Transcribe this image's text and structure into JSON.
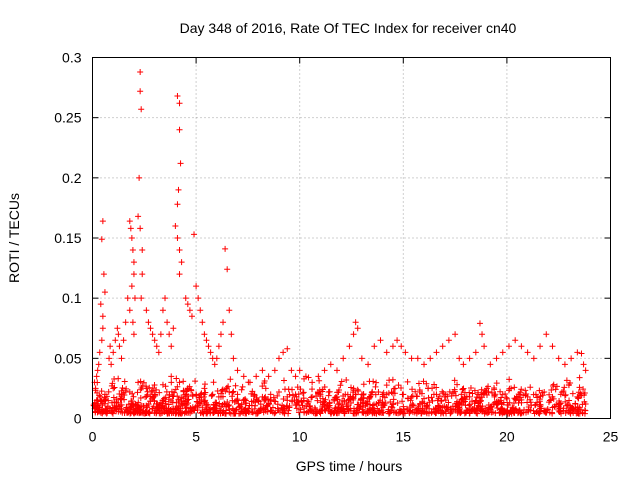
{
  "chart_data": {
    "type": "scatter",
    "title": "Day 348 of 2016, Rate Of TEC Index for receiver cn40",
    "xlabel": "GPS time / hours",
    "ylabel": "ROTI / TECUs",
    "xlim": [
      0,
      25
    ],
    "ylim": [
      0,
      0.3
    ],
    "x_ticks": [
      "0",
      "5",
      "10",
      "15",
      "20",
      "25"
    ],
    "y_ticks": [
      "0",
      "0.05",
      "0.1",
      "0.15",
      "0.2",
      "0.25",
      "0.3"
    ],
    "grid": true,
    "marker": "plus",
    "color": "#ff0000",
    "series": [
      {
        "name": "ROTI",
        "x": [
          0.5,
          0.45,
          0.55,
          0.6,
          0.4,
          0.5,
          0.5,
          0.45,
          0.35,
          0.3,
          0.2,
          0.1,
          0.15,
          0.25,
          0.8,
          0.85,
          0.9,
          1.0,
          1.1,
          1.2,
          1.25,
          1.3,
          1.4,
          1.5,
          1.6,
          1.7,
          1.8,
          1.85,
          1.9,
          1.95,
          2.0,
          2.0,
          1.9,
          2.05,
          1.8,
          1.95,
          2.0,
          2.3,
          2.3,
          2.35,
          2.25,
          2.2,
          2.3,
          2.4,
          2.4,
          2.35,
          2.6,
          2.7,
          2.8,
          2.9,
          3.0,
          3.1,
          3.2,
          3.3,
          3.4,
          3.5,
          3.6,
          3.7,
          3.8,
          3.9,
          4.1,
          4.2,
          4.2,
          4.25,
          4.15,
          4.1,
          4.0,
          4.1,
          4.2,
          4.3,
          4.2,
          4.5,
          4.6,
          4.7,
          4.8,
          4.9,
          5.0,
          5.1,
          5.2,
          5.3,
          5.4,
          5.5,
          5.6,
          5.7,
          5.8,
          5.9,
          6.0,
          6.1,
          6.2,
          6.3,
          6.4,
          6.5,
          6.6,
          6.7,
          6.8,
          7.0,
          7.3,
          7.6,
          7.9,
          8.2,
          8.5,
          8.8,
          9.0,
          9.2,
          9.4,
          9.6,
          9.8,
          10.0,
          10.3,
          10.6,
          10.9,
          11.2,
          11.5,
          11.8,
          12.1,
          12.4,
          12.6,
          12.7,
          12.8,
          13.0,
          13.3,
          13.6,
          13.9,
          14.2,
          14.5,
          14.7,
          14.9,
          15.1,
          15.4,
          15.7,
          16.0,
          16.3,
          16.6,
          16.9,
          17.2,
          17.5,
          17.7,
          17.9,
          18.2,
          18.5,
          18.7,
          18.8,
          18.9,
          19.2,
          19.5,
          19.8,
          20.1,
          20.4,
          20.7,
          21.0,
          21.3,
          21.6,
          21.9,
          22.2,
          22.5,
          22.8,
          23.1,
          23.4,
          23.6,
          23.7,
          23.8,
          0.2,
          0.6,
          1.0,
          1.4,
          1.8,
          2.2,
          2.6,
          3.0,
          3.4,
          3.8,
          4.2,
          4.6,
          5.0,
          5.4,
          5.8,
          6.2,
          6.6,
          7.0,
          7.4,
          7.8,
          8.2,
          8.6,
          9.0,
          9.4,
          9.8,
          10.2,
          10.6,
          11.0,
          11.4,
          11.8,
          12.2,
          12.6,
          13.0,
          13.4,
          13.8,
          14.2,
          14.6,
          15.0,
          15.4,
          15.8,
          16.2,
          16.6,
          17.0,
          17.4,
          17.8,
          18.2,
          18.6,
          19.0,
          19.4,
          19.8,
          20.2,
          20.6,
          21.0,
          21.4,
          21.8,
          22.2,
          22.6,
          23.0,
          23.4,
          23.8
        ],
        "y": [
          0.164,
          0.149,
          0.12,
          0.105,
          0.095,
          0.085,
          0.075,
          0.065,
          0.055,
          0.045,
          0.035,
          0.03,
          0.025,
          0.04,
          0.05,
          0.06,
          0.045,
          0.055,
          0.065,
          0.075,
          0.07,
          0.06,
          0.05,
          0.065,
          0.08,
          0.1,
          0.164,
          0.158,
          0.15,
          0.14,
          0.13,
          0.12,
          0.11,
          0.1,
          0.09,
          0.08,
          0.07,
          0.288,
          0.272,
          0.257,
          0.2,
          0.168,
          0.158,
          0.14,
          0.12,
          0.1,
          0.09,
          0.08,
          0.075,
          0.07,
          0.065,
          0.06,
          0.055,
          0.07,
          0.09,
          0.1,
          0.08,
          0.07,
          0.06,
          0.075,
          0.268,
          0.262,
          0.24,
          0.212,
          0.19,
          0.178,
          0.16,
          0.15,
          0.14,
          0.13,
          0.12,
          0.1,
          0.095,
          0.09,
          0.085,
          0.153,
          0.11,
          0.1,
          0.09,
          0.08,
          0.07,
          0.065,
          0.06,
          0.055,
          0.05,
          0.045,
          0.05,
          0.06,
          0.07,
          0.08,
          0.141,
          0.124,
          0.09,
          0.07,
          0.05,
          0.04,
          0.035,
          0.03,
          0.035,
          0.04,
          0.035,
          0.04,
          0.05,
          0.055,
          0.058,
          0.04,
          0.035,
          0.04,
          0.035,
          0.03,
          0.035,
          0.04,
          0.045,
          0.04,
          0.05,
          0.06,
          0.07,
          0.08,
          0.075,
          0.05,
          0.045,
          0.06,
          0.065,
          0.055,
          0.06,
          0.065,
          0.06,
          0.055,
          0.05,
          0.05,
          0.045,
          0.05,
          0.055,
          0.06,
          0.065,
          0.07,
          0.05,
          0.045,
          0.05,
          0.055,
          0.079,
          0.07,
          0.06,
          0.045,
          0.05,
          0.055,
          0.06,
          0.065,
          0.06,
          0.055,
          0.05,
          0.06,
          0.07,
          0.06,
          0.05,
          0.045,
          0.05,
          0.055,
          0.054,
          0.045,
          0.04,
          0.015,
          0.02,
          0.025,
          0.018,
          0.022,
          0.03,
          0.025,
          0.02,
          0.028,
          0.035,
          0.03,
          0.025,
          0.02,
          0.025,
          0.02,
          0.018,
          0.022,
          0.02,
          0.015,
          0.02,
          0.018,
          0.02,
          0.022,
          0.018,
          0.02,
          0.015,
          0.018,
          0.02,
          0.022,
          0.018,
          0.02,
          0.025,
          0.02,
          0.018,
          0.022,
          0.02,
          0.025,
          0.02,
          0.018,
          0.022,
          0.025,
          0.02,
          0.018,
          0.022,
          0.02,
          0.018,
          0.02,
          0.022,
          0.018,
          0.02,
          0.025,
          0.02,
          0.018,
          0.02,
          0.022,
          0.018,
          0.02,
          0.015,
          0.018,
          0.012
        ]
      }
    ]
  }
}
